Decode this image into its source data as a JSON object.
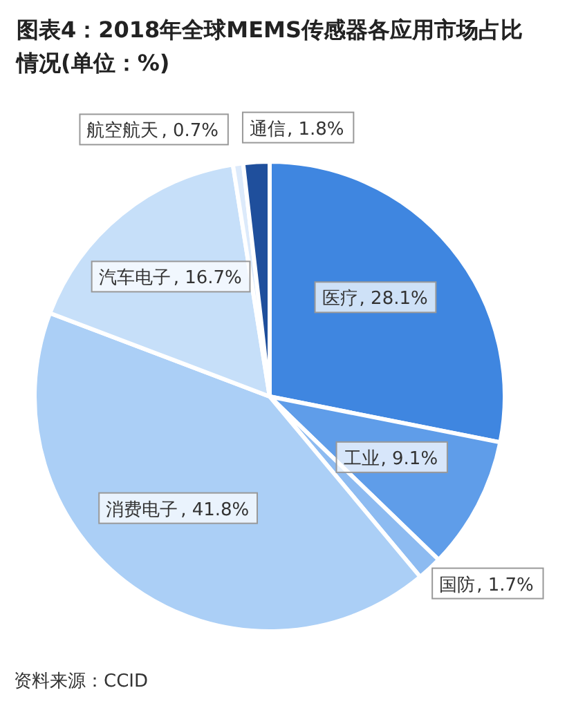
{
  "chart_data": {
    "type": "pie",
    "title": "图表4：2018年全球MEMS传感器各应用市场占比情况(单位：%)",
    "categories": [
      "医疗",
      "工业",
      "国防",
      "消费电子",
      "汽车电子",
      "航空航天",
      "通信"
    ],
    "values": [
      28.1,
      9.1,
      1.7,
      41.8,
      16.7,
      0.7,
      1.8
    ],
    "colors": [
      "#3f86e0",
      "#5f9de9",
      "#8dbbf1",
      "#abcff6",
      "#c6dff9",
      "#dceafb",
      "#1f4f9c"
    ],
    "value_labels": [
      ", 28.1%",
      ", 9.1%",
      ", 1.7%",
      ", 41.8%",
      ", 16.7%",
      ", 0.7%",
      ", 1.8%"
    ],
    "annotations": [
      "资料来源：CCID"
    ]
  }
}
